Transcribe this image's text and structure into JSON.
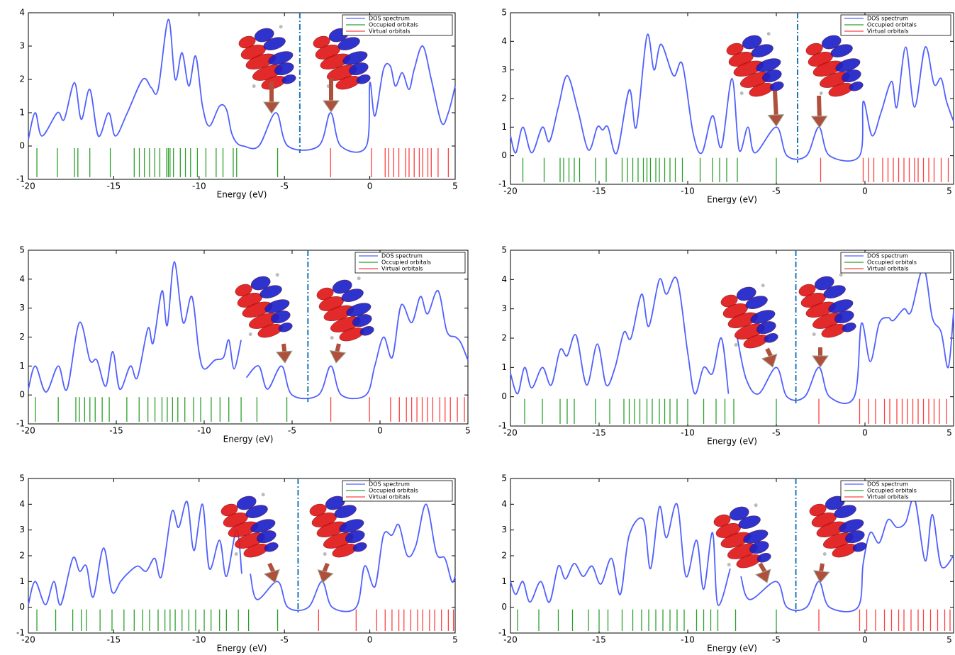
{
  "chart_data": [
    {
      "type": "line",
      "xlabel": "Energy (eV)",
      "xlim": [
        -20,
        5
      ],
      "ylim": [
        -1,
        4
      ],
      "xticks": [
        -20,
        -15,
        -10,
        -5,
        0,
        5
      ],
      "yticks": [
        -1,
        0,
        1,
        2,
        3,
        4
      ],
      "vline": -4.1,
      "legend": "upper right",
      "series": [
        {
          "name": "DOS spectrum",
          "color": "#5060ff",
          "x": [
            -20,
            -19.6,
            -19.2,
            -18.3,
            -17.9,
            -17.3,
            -16.9,
            -16.4,
            -15.9,
            -15.3,
            -14.9,
            -14.2,
            -13.3,
            -12.8,
            -12.4,
            -11.8,
            -11.4,
            -11.0,
            -10.6,
            -10.2,
            -9.8,
            -9.4,
            -8.8,
            -8.4,
            -8.1,
            -7.8,
            -7.4,
            -6.5,
            -5.5,
            -4.8,
            -3.0,
            -2.3,
            -1.7,
            -0.2,
            0.0,
            0.3,
            0.8,
            1.2,
            1.5,
            1.9,
            2.3,
            2.6,
            3.1,
            3.6,
            4.2,
            4.6,
            5.0
          ],
          "values": [
            0.2,
            1.0,
            0.3,
            1.0,
            0.8,
            1.9,
            0.8,
            1.7,
            0.3,
            1.0,
            0.3,
            1.0,
            2.0,
            1.75,
            1.7,
            3.8,
            2.0,
            2.8,
            1.8,
            2.7,
            1.2,
            0.6,
            1.2,
            1.1,
            0.4,
            0.1,
            0.0,
            0.0,
            1.0,
            0.0,
            0.0,
            1.0,
            0.0,
            0.0,
            1.9,
            0.9,
            2.3,
            2.4,
            1.8,
            2.2,
            1.7,
            2.3,
            3.0,
            2.0,
            0.7,
            1.0,
            1.8
          ]
        },
        {
          "name": "Occupied orbitals",
          "color": "#2ca02c",
          "values": [
            -19.5,
            -18.3,
            -17.3,
            -17.1,
            -16.4,
            -15.2,
            -13.8,
            -13.5,
            -13.2,
            -12.9,
            -12.6,
            -12.3,
            -11.9,
            -11.8,
            -11.7,
            -11.5,
            -11.1,
            -10.8,
            -10.5,
            -10.1,
            -9.6,
            -9.0,
            -8.6,
            -8.0,
            -7.8,
            -5.4
          ]
        },
        {
          "name": "Virtual orbitals",
          "color": "#ff4040",
          "values": [
            -2.3,
            0.1,
            0.9,
            1.1,
            1.4,
            1.7,
            2.1,
            2.3,
            2.6,
            2.9,
            3.1,
            3.4,
            3.6,
            4.0,
            4.6
          ]
        }
      ]
    },
    {
      "type": "line",
      "xlabel": "Energy (eV)",
      "xlim": [
        -20,
        5
      ],
      "ylim": [
        -1,
        5
      ],
      "xticks": [
        -20,
        -15,
        -10,
        -5,
        0,
        5
      ],
      "yticks": [
        -1,
        0,
        1,
        2,
        3,
        4,
        5
      ],
      "vline": -3.8,
      "legend": "upper right",
      "series": [
        {
          "name": "DOS spectrum",
          "color": "#5060ff",
          "x": [
            -20,
            -19.7,
            -19.3,
            -18.8,
            -18.2,
            -17.8,
            -17.3,
            -16.8,
            -16.2,
            -15.6,
            -15.1,
            -14.8,
            -14.5,
            -14.0,
            -13.3,
            -12.9,
            -12.3,
            -11.9,
            -11.5,
            -10.8,
            -10.3,
            -9.7,
            -9.2,
            -8.6,
            -8.1,
            -7.5,
            -7.1,
            -6.6,
            -6.2,
            -5.0,
            -4.4,
            -3.3,
            -2.6,
            -2.0,
            -0.3,
            -0.1,
            0.4,
            0.9,
            1.5,
            1.8,
            2.3,
            2.8,
            3.4,
            3.9,
            4.3,
            4.6,
            5.0
          ],
          "values": [
            0.7,
            0.1,
            1.0,
            0.1,
            1.0,
            0.5,
            1.7,
            2.8,
            1.6,
            0.2,
            1.0,
            0.9,
            1.0,
            0.1,
            2.3,
            1.0,
            4.2,
            3.0,
            3.9,
            2.8,
            3.2,
            0.8,
            0.1,
            1.4,
            0.3,
            2.7,
            0.2,
            1.0,
            0.1,
            1.0,
            0.0,
            0.0,
            1.0,
            0.0,
            0.0,
            1.9,
            0.7,
            1.5,
            2.6,
            1.7,
            3.8,
            1.7,
            3.8,
            2.5,
            2.7,
            1.9,
            1.2
          ]
        },
        {
          "name": "Occupied orbitals",
          "color": "#2ca02c",
          "values": [
            -19.3,
            -18.1,
            -17.2,
            -17.0,
            -16.7,
            -16.4,
            -16.1,
            -15.2,
            -14.6,
            -13.7,
            -13.4,
            -13.1,
            -12.8,
            -12.5,
            -12.3,
            -12.1,
            -11.8,
            -11.6,
            -11.3,
            -11.0,
            -10.7,
            -10.3,
            -9.3,
            -8.6,
            -8.2,
            -7.8,
            -7.2,
            -5.0
          ]
        },
        {
          "name": "Virtual orbitals",
          "color": "#ff4040",
          "values": [
            -2.5,
            -0.1,
            0.2,
            0.5,
            1.0,
            1.3,
            1.6,
            1.9,
            2.2,
            2.5,
            2.8,
            3.0,
            3.3,
            3.6,
            3.9,
            4.3,
            4.7
          ]
        }
      ]
    },
    {
      "type": "line",
      "xlabel": "Energy (eV)",
      "xlim": [
        -20,
        5
      ],
      "ylim": [
        -1,
        5
      ],
      "xticks": [
        -20,
        -15,
        -10,
        -5,
        0,
        5
      ],
      "yticks": [
        -1,
        0,
        1,
        2,
        3,
        4,
        5
      ],
      "vline": -4.1,
      "legend": "upper right",
      "series": [
        {
          "name": "DOS spectrum",
          "color": "#5060ff",
          "x": [
            -20,
            -19.6,
            -19.0,
            -18.3,
            -17.8,
            -17.1,
            -16.5,
            -16.1,
            -15.6,
            -15.2,
            -14.8,
            -14.2,
            -13.8,
            -13.2,
            -12.9,
            -12.4,
            -12.1,
            -11.7,
            -11.2,
            -10.7,
            -10.3,
            -10.0,
            -9.4,
            -8.9,
            -8.6,
            -8.3,
            -7.9,
            -7.75,
            -7.6,
            -6.9,
            -6.4,
            -5.6,
            -5.0,
            -3.5,
            -2.8,
            -2.2,
            -0.8,
            -0.3,
            0.2,
            0.7,
            1.2,
            1.8,
            2.3,
            2.7,
            3.3,
            3.8,
            4.3,
            4.6,
            5.0
          ],
          "values": [
            0.2,
            1.0,
            0.1,
            1.0,
            0.2,
            2.5,
            1.2,
            1.2,
            0.3,
            1.5,
            0.2,
            1.0,
            0.6,
            2.3,
            1.8,
            3.6,
            2.4,
            4.6,
            2.5,
            3.4,
            1.5,
            0.9,
            1.2,
            1.3,
            1.9,
            0.9,
            1.9,
            null,
            0.6,
            1.0,
            0.2,
            1.0,
            0.0,
            0.0,
            1.0,
            0.0,
            0.0,
            1.0,
            2.0,
            1.3,
            3.1,
            2.5,
            3.4,
            2.8,
            3.6,
            2.2,
            2.0,
            1.8,
            1.2
          ]
        },
        {
          "name": "Occupied orbitals",
          "color": "#2ca02c",
          "values": [
            -19.6,
            -18.3,
            -17.3,
            -17.1,
            -16.8,
            -16.5,
            -16.2,
            -15.8,
            -15.4,
            -14.4,
            -13.7,
            -13.2,
            -12.8,
            -12.4,
            -12.1,
            -11.8,
            -11.5,
            -11.1,
            -10.6,
            -10.2,
            -9.6,
            -9.1,
            -8.6,
            -7.9,
            -7.0,
            -5.3
          ]
        },
        {
          "name": "Virtual orbitals",
          "color": "#ff4040",
          "values": [
            -2.8,
            -0.6,
            0.6,
            1.1,
            1.5,
            1.8,
            2.1,
            2.4,
            2.7,
            3.0,
            3.4,
            3.7,
            4.0,
            4.4,
            4.8
          ]
        }
      ]
    },
    {
      "type": "line",
      "xlabel": "Energy (eV)",
      "xlim": [
        -20,
        5
      ],
      "ylim": [
        -1,
        5
      ],
      "xticks": [
        -20,
        -15,
        -10,
        -5,
        0,
        5
      ],
      "yticks": [
        -1,
        0,
        1,
        2,
        3,
        4,
        5
      ],
      "vline": -3.9,
      "legend": "upper right",
      "series": [
        {
          "name": "DOS spectrum",
          "color": "#5060ff",
          "x": [
            -20,
            -19.6,
            -19.2,
            -18.8,
            -18.2,
            -17.7,
            -17.2,
            -16.8,
            -16.3,
            -15.7,
            -15.1,
            -14.6,
            -14.1,
            -13.6,
            -13.2,
            -12.6,
            -12.2,
            -11.6,
            -11.2,
            -10.6,
            -10.0,
            -9.6,
            -9.1,
            -8.6,
            -8.1,
            -7.7,
            -7.4,
            -7.2,
            -6.7,
            -6.0,
            -5.0,
            -4.4,
            -3.4,
            -2.6,
            -2.0,
            -0.6,
            -0.2,
            0.3,
            0.8,
            1.3,
            1.6,
            2.2,
            2.6,
            3.3,
            3.8,
            4.3,
            4.7,
            5.0
          ],
          "values": [
            0.8,
            0.1,
            1.0,
            0.3,
            1.0,
            0.4,
            1.6,
            1.4,
            2.1,
            0.4,
            1.8,
            0.4,
            1.0,
            2.2,
            2.0,
            3.5,
            2.4,
            4.0,
            3.5,
            4.0,
            1.5,
            0.1,
            1.0,
            0.8,
            2.0,
            0.1,
            null,
            2.0,
            0.6,
            0.1,
            1.0,
            0.0,
            0.0,
            1.0,
            0.0,
            0.0,
            2.5,
            1.2,
            2.5,
            2.7,
            2.6,
            3.0,
            2.9,
            4.4,
            2.7,
            2.2,
            1.0,
            2.9
          ]
        },
        {
          "name": "Occupied orbitals",
          "color": "#2ca02c",
          "values": [
            -19.2,
            -18.2,
            -17.2,
            -16.8,
            -16.4,
            -15.2,
            -14.4,
            -13.6,
            -13.3,
            -13.0,
            -12.7,
            -12.3,
            -12.0,
            -11.6,
            -11.3,
            -11.0,
            -10.6,
            -10.0,
            -9.1,
            -8.4,
            -7.9,
            -7.4,
            -5.0
          ]
        },
        {
          "name": "Virtual orbitals",
          "color": "#ff4040",
          "values": [
            -2.6,
            -0.3,
            0.2,
            0.6,
            1.1,
            1.4,
            1.8,
            2.1,
            2.4,
            2.7,
            3.0,
            3.3,
            3.6,
            3.9,
            4.2,
            4.6
          ]
        }
      ]
    },
    {
      "type": "line",
      "xlabel": "Energy (eV)",
      "xlim": [
        -20,
        5
      ],
      "ylim": [
        -1,
        5
      ],
      "xticks": [
        -20,
        -15,
        -10,
        -5,
        0,
        5
      ],
      "yticks": [
        -1,
        0,
        1,
        2,
        3,
        4,
        5
      ],
      "vline": -4.2,
      "legend": "upper right",
      "series": [
        {
          "name": "DOS spectrum",
          "color": "#5060ff",
          "x": [
            -20,
            -19.6,
            -19.0,
            -18.5,
            -18.1,
            -17.4,
            -17.0,
            -16.6,
            -16.2,
            -15.6,
            -15.1,
            -14.6,
            -14.2,
            -13.6,
            -13.1,
            -12.6,
            -12.2,
            -11.6,
            -11.2,
            -10.7,
            -10.3,
            -9.8,
            -9.4,
            -8.8,
            -8.4,
            -7.8,
            -7.5,
            -7.3,
            -7.0,
            -6.6,
            -5.4,
            -4.8,
            -3.6,
            -2.8,
            -2.2,
            -0.8,
            -0.3,
            0.3,
            0.8,
            1.3,
            1.7,
            2.2,
            2.7,
            3.3,
            3.9,
            4.4,
            4.8,
            5.0
          ],
          "values": [
            0.1,
            1.0,
            0.1,
            1.0,
            0.1,
            1.9,
            1.4,
            1.6,
            0.4,
            2.3,
            0.6,
            1.0,
            1.3,
            1.6,
            1.4,
            1.9,
            1.2,
            3.7,
            3.1,
            4.1,
            2.2,
            4.0,
            1.5,
            2.6,
            1.2,
            3.0,
            1.3,
            null,
            1.3,
            0.3,
            1.0,
            0.0,
            0.0,
            1.0,
            0.0,
            0.0,
            1.6,
            0.8,
            2.8,
            2.8,
            3.2,
            2.0,
            2.4,
            4.0,
            2.1,
            1.9,
            1.0,
            1.2
          ]
        },
        {
          "name": "Occupied orbitals",
          "color": "#2ca02c",
          "values": [
            -19.5,
            -18.4,
            -17.4,
            -16.9,
            -16.6,
            -15.8,
            -15.1,
            -14.4,
            -13.8,
            -13.3,
            -12.9,
            -12.4,
            -12.0,
            -11.7,
            -11.4,
            -11.0,
            -10.6,
            -10.2,
            -9.7,
            -9.3,
            -8.8,
            -8.4,
            -7.7,
            -7.1,
            -5.4
          ]
        },
        {
          "name": "Virtual orbitals",
          "color": "#ff4040",
          "values": [
            -3.0,
            -0.8,
            0.4,
            0.9,
            1.3,
            1.7,
            2.0,
            2.4,
            2.8,
            3.1,
            3.5,
            3.8,
            4.2,
            4.6,
            4.9
          ]
        }
      ]
    },
    {
      "type": "line",
      "xlabel": "Energy (eV)",
      "xlim": [
        -20,
        5
      ],
      "ylim": [
        -1,
        5
      ],
      "xticks": [
        -20,
        -15,
        -10,
        -5,
        0,
        5
      ],
      "yticks": [
        -1,
        0,
        1,
        2,
        3,
        4,
        5
      ],
      "vline": -3.9,
      "legend": "upper right",
      "series": [
        {
          "name": "DOS spectrum",
          "color": "#5060ff",
          "x": [
            -20,
            -19.7,
            -19.3,
            -18.9,
            -18.3,
            -17.8,
            -17.3,
            -16.9,
            -16.4,
            -15.9,
            -15.4,
            -14.9,
            -14.3,
            -13.8,
            -13.3,
            -12.5,
            -12.1,
            -11.6,
            -11.2,
            -10.6,
            -10.1,
            -9.5,
            -9.1,
            -8.6,
            -8.3,
            -7.6,
            -7.3,
            -7.0,
            -6.5,
            -5.0,
            -4.4,
            -3.3,
            -2.6,
            -2.0,
            -0.4,
            -0.1,
            0.3,
            0.8,
            1.3,
            1.8,
            2.3,
            2.8,
            3.4,
            3.8,
            4.3,
            5.0
          ],
          "values": [
            1.0,
            0.5,
            1.0,
            0.2,
            1.0,
            0.2,
            1.6,
            1.1,
            1.7,
            1.2,
            1.6,
            0.9,
            1.9,
            0.5,
            2.8,
            3.4,
            1.5,
            3.9,
            2.7,
            4.0,
            1.2,
            2.6,
            0.7,
            2.9,
            0.1,
            1.5,
            null,
            1.2,
            0.3,
            1.0,
            0.0,
            0.0,
            1.0,
            0.0,
            0.0,
            1.7,
            2.9,
            2.5,
            3.4,
            3.1,
            3.3,
            4.2,
            1.8,
            3.6,
            1.6,
            2.0
          ]
        },
        {
          "name": "Occupied orbitals",
          "color": "#2ca02c",
          "values": [
            -19.6,
            -18.4,
            -17.3,
            -16.5,
            -15.6,
            -15.0,
            -14.5,
            -13.7,
            -13.1,
            -12.6,
            -12.2,
            -11.8,
            -11.4,
            -11.0,
            -10.6,
            -10.2,
            -9.5,
            -9.1,
            -8.7,
            -8.3,
            -7.3,
            -5.0
          ]
        },
        {
          "name": "Virtual orbitals",
          "color": "#ff4040",
          "values": [
            -2.6,
            -0.3,
            0.1,
            0.6,
            1.1,
            1.5,
            1.9,
            2.2,
            2.6,
            3.0,
            3.3,
            3.7,
            4.1,
            4.5,
            4.8
          ]
        }
      ]
    }
  ]
}
